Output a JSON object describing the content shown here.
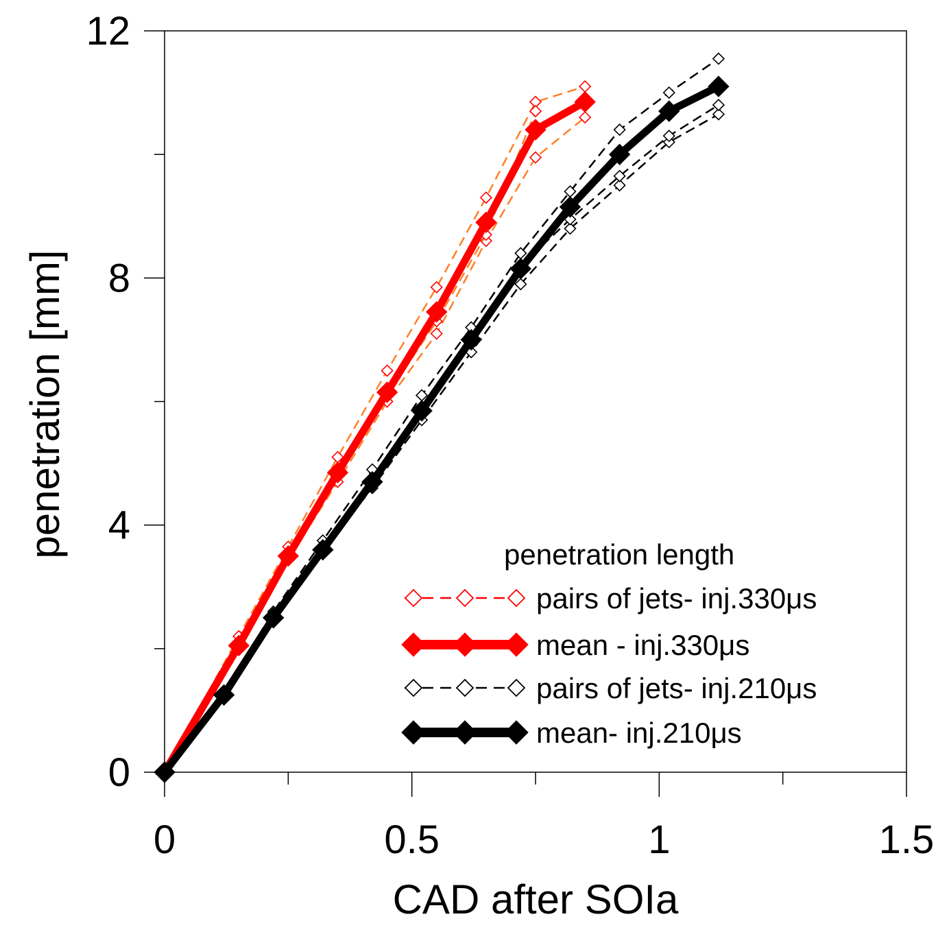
{
  "chart_data": {
    "type": "line",
    "xlabel": "CAD after SOIa",
    "ylabel": "penetration [mm]",
    "xlim": [
      0,
      1.5
    ],
    "ylim": [
      0,
      12
    ],
    "x_ticks": [
      "0",
      "0.5",
      "1",
      "1.5"
    ],
    "y_ticks": [
      "0",
      "4",
      "8",
      "12"
    ],
    "x_tick_values": [
      0,
      0.5,
      1,
      1.5
    ],
    "y_tick_values": [
      0,
      4,
      8,
      12
    ],
    "x_minor_ticks": [
      0.25,
      0.75,
      1.25
    ],
    "y_minor_ticks": [
      2,
      6,
      10
    ],
    "grid": false,
    "legend": {
      "title": "penetration length",
      "position": "bottom-right",
      "entries": [
        {
          "label": "pairs of jets- inj.330μs",
          "color": "#ff0000",
          "style": "dashed-hollow-diamond"
        },
        {
          "label": "mean - inj.330μs",
          "color": "#ff0000",
          "style": "solid-filled-diamond"
        },
        {
          "label": "pairs of jets- inj.210μs",
          "color": "#000000",
          "style": "dashed-hollow-diamond"
        },
        {
          "label": "mean- inj.210μs",
          "color": "#000000",
          "style": "solid-filled-diamond"
        }
      ]
    },
    "series": [
      {
        "group": "jets-330-a",
        "style": "dashed",
        "line_color": "#ff7f27",
        "marker_color": "#ff0000",
        "x": [
          0,
          0.15,
          0.25,
          0.35,
          0.45,
          0.55,
          0.65,
          0.75,
          0.85
        ],
        "y": [
          0,
          2.2,
          3.65,
          5.1,
          6.5,
          7.85,
          9.3,
          10.85,
          11.1
        ]
      },
      {
        "group": "jets-330-b",
        "style": "dashed",
        "line_color": "#ff7f27",
        "marker_color": "#ff0000",
        "x": [
          0,
          0.15,
          0.25,
          0.35,
          0.45,
          0.55,
          0.65,
          0.75,
          0.85
        ],
        "y": [
          0,
          2.0,
          3.45,
          4.7,
          6.0,
          7.1,
          8.6,
          9.95,
          10.6
        ]
      },
      {
        "group": "jets-330-c",
        "style": "dashed",
        "line_color": "#ff7f27",
        "marker_color": "#ff0000",
        "x": [
          0,
          0.15,
          0.25,
          0.35,
          0.45,
          0.55,
          0.65,
          0.75
        ],
        "y": [
          0,
          2.1,
          3.55,
          4.9,
          6.1,
          7.3,
          8.7,
          10.7
        ]
      },
      {
        "group": "jets-210-a",
        "style": "dashed",
        "line_color": "#000000",
        "marker_color": "#000000",
        "x": [
          0,
          0.12,
          0.22,
          0.32,
          0.42,
          0.52,
          0.62,
          0.72,
          0.82,
          0.92,
          1.02,
          1.12
        ],
        "y": [
          0,
          1.3,
          2.6,
          3.75,
          4.9,
          6.1,
          7.2,
          8.4,
          9.4,
          10.4,
          11.0,
          11.55
        ]
      },
      {
        "group": "jets-210-b",
        "style": "dashed",
        "line_color": "#000000",
        "marker_color": "#000000",
        "x": [
          0,
          0.12,
          0.22,
          0.32,
          0.42,
          0.52,
          0.62,
          0.72,
          0.82,
          0.92,
          1.02,
          1.12
        ],
        "y": [
          0,
          1.2,
          2.45,
          3.6,
          4.6,
          5.7,
          6.8,
          7.9,
          8.8,
          9.5,
          10.2,
          10.65
        ]
      },
      {
        "group": "jets-210-c",
        "style": "dashed",
        "line_color": "#000000",
        "marker_color": "#000000",
        "x": [
          0,
          0.12,
          0.22,
          0.32,
          0.42,
          0.52,
          0.62,
          0.72,
          0.82,
          0.92,
          1.02,
          1.12
        ],
        "y": [
          0,
          1.25,
          2.5,
          3.65,
          4.75,
          5.9,
          7.0,
          8.2,
          8.95,
          9.65,
          10.3,
          10.8
        ]
      },
      {
        "group": "mean-330",
        "style": "solid",
        "line_color": "#ff0000",
        "marker_color": "#ff0000",
        "x": [
          0,
          0.15,
          0.25,
          0.35,
          0.45,
          0.55,
          0.65,
          0.75,
          0.85
        ],
        "y": [
          0,
          2.05,
          3.5,
          4.85,
          6.15,
          7.45,
          8.9,
          10.4,
          10.85
        ]
      },
      {
        "group": "mean-210",
        "style": "solid",
        "line_color": "#000000",
        "marker_color": "#000000",
        "x": [
          0,
          0.12,
          0.22,
          0.32,
          0.42,
          0.52,
          0.62,
          0.72,
          0.82,
          0.92,
          1.02,
          1.12
        ],
        "y": [
          0,
          1.25,
          2.5,
          3.6,
          4.7,
          5.85,
          7.0,
          8.15,
          9.15,
          10.0,
          10.7,
          11.1
        ]
      }
    ]
  }
}
